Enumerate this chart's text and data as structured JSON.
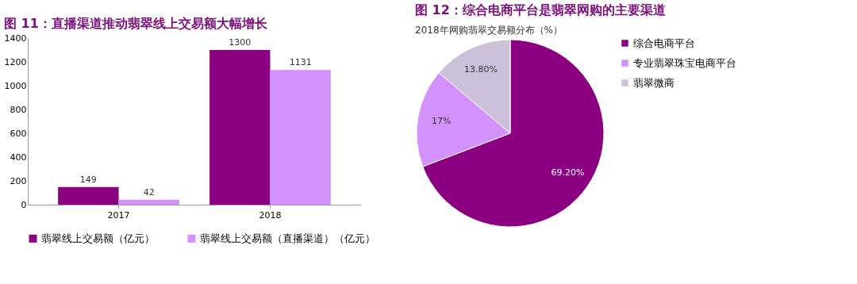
{
  "chart_data": [
    {
      "type": "bar",
      "title": "图 11：直播渠道推动翡翠线上交易额大幅增长",
      "categories": [
        "2017",
        "2018"
      ],
      "series": [
        {
          "name": "翡翠线上交易额（亿元）",
          "color": "#8b0080",
          "values": [
            149,
            1300
          ]
        },
        {
          "name": "翡翠线上交易额（直播渠道）（亿元）",
          "color": "#d291fc",
          "values": [
            42,
            1131
          ]
        }
      ],
      "ylim": [
        0,
        1400
      ],
      "yticks": [
        0,
        200,
        400,
        600,
        800,
        1000,
        1200,
        1400
      ],
      "grid": false,
      "legend": "bottom",
      "data_labels": true
    },
    {
      "type": "pie",
      "title": "图 12：综合电商平台是翡翠网购的主要渠道",
      "subtitle": "2018年网购翡翠交易额分布（%）",
      "categories": [
        "综合电商平台",
        "专业翡翠珠宝电商平台",
        "翡翠微商"
      ],
      "values": [
        69.2,
        17,
        13.8
      ],
      "colors": [
        "#8b0080",
        "#d291fc",
        "#ccc0da"
      ],
      "value_labels": [
        "69.20%",
        "17%",
        "13.80%"
      ],
      "legend": "right"
    }
  ]
}
